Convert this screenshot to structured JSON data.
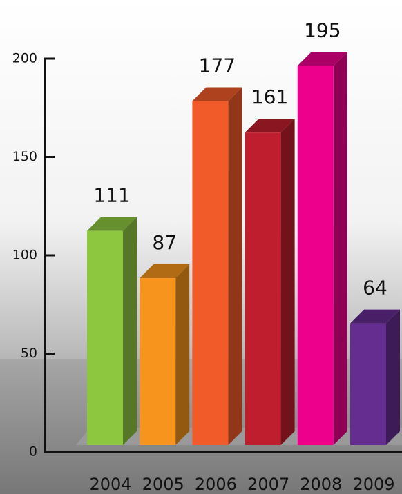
{
  "chart_data": {
    "type": "bar3d",
    "categories": [
      "2004",
      "2005",
      "2006",
      "2007",
      "2008",
      "2009"
    ],
    "values": [
      111,
      87,
      177,
      161,
      195,
      64
    ],
    "colors": [
      "#8dc63f",
      "#f7941d",
      "#f15a29",
      "#be1e2d",
      "#ec008c",
      "#662d91"
    ],
    "ylim": [
      0,
      200
    ],
    "yticks": [
      0,
      50,
      100,
      150,
      200
    ]
  }
}
